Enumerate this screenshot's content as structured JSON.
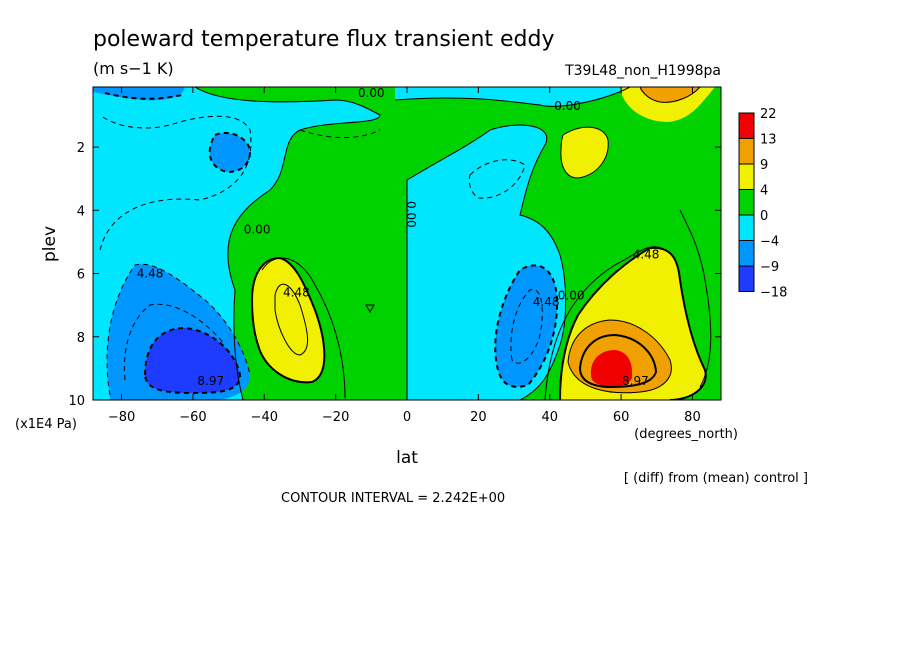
{
  "chart_data": {
    "type": "heatmap",
    "title": "poleward temperature flux transient eddy",
    "units": "(m s−1 K)",
    "run_label": "T39L48_non_H1998pa",
    "xlabel": "lat",
    "x_unit": "(degrees_north)",
    "ylabel": "plev",
    "y_unit": "(x1E4 Pa)",
    "xlim": [
      -88,
      88
    ],
    "ylim": [
      0.1,
      10
    ],
    "y_inverted": true,
    "x_ticks": [
      -80,
      -60,
      -40,
      -20,
      0,
      20,
      40,
      60,
      80
    ],
    "x_tick_labels": [
      "−80",
      "−60",
      "−40",
      "−20",
      "0",
      "20",
      "40",
      "60",
      "80"
    ],
    "y_ticks": [
      2,
      4,
      6,
      8,
      10
    ],
    "y_tick_labels": [
      "2",
      "4",
      "6",
      "8",
      "10"
    ],
    "colorbar": {
      "labels": [
        "22",
        "13",
        "9",
        "4",
        "0",
        "−4",
        "−9",
        "−18"
      ],
      "colors": [
        "#f00000",
        "#f0a000",
        "#f0f000",
        "#00d200",
        "#00e6ff",
        "#0096ff",
        "#1e3cff"
      ]
    },
    "contour_labels": [
      {
        "text": "0.00",
        "lat": -10,
        "plev": 0.05
      },
      {
        "text": "0.00",
        "lat": 45,
        "plev": 0.7
      },
      {
        "text": "0.00",
        "lat": 0,
        "plev": 4.0
      },
      {
        "text": "0.00",
        "lat": -42,
        "plev": 4.6
      },
      {
        "text": "0.00",
        "lat": 46,
        "plev": 6.7
      },
      {
        "text": "4.48",
        "lat": -72,
        "plev": 6.0
      },
      {
        "text": "4.48",
        "lat": -31,
        "plev": 6.6
      },
      {
        "text": "4.48",
        "lat": 39,
        "plev": 6.9
      },
      {
        "text": "4.48",
        "lat": 67,
        "plev": 5.4
      },
      {
        "text": "8.97",
        "lat": -55,
        "plev": 9.4
      },
      {
        "text": "8.97",
        "lat": 64,
        "plev": 9.4
      }
    ],
    "grid": false,
    "legend": "right"
  },
  "footer": {
    "diff_note": "[ (diff) from (mean) control ]",
    "contour_interval": "CONTOUR INTERVAL = 2.242E+00"
  }
}
